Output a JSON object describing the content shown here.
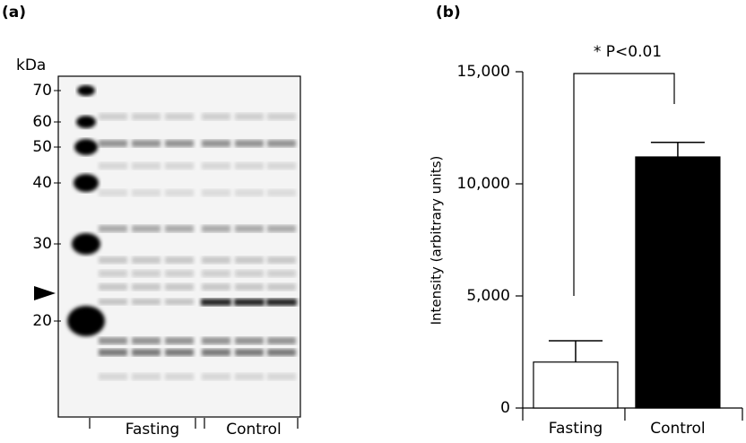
{
  "panel_a": {
    "label": "(a)",
    "unit": "kDa",
    "markers": [
      70,
      60,
      50,
      40,
      30,
      20
    ],
    "lanes": [
      "Fasting",
      "Control"
    ]
  },
  "chart_data": {
    "type": "bar",
    "panel_label": "(b)",
    "annotation": "* P<0.01",
    "y_label": "Intensity (arbitrary units)",
    "categories": [
      "Fasting",
      "Control"
    ],
    "values": [
      2050,
      11200
    ],
    "errors": [
      950,
      650
    ],
    "colors": [
      "#ffffff",
      "#000000"
    ],
    "ylim": [
      0,
      15000
    ],
    "yticks": [
      0,
      {
        "value": 5000,
        "label": "5,000"
      },
      {
        "value": 10000,
        "label": "10,000"
      },
      {
        "value": 15000,
        "label": "15,000"
      }
    ]
  }
}
